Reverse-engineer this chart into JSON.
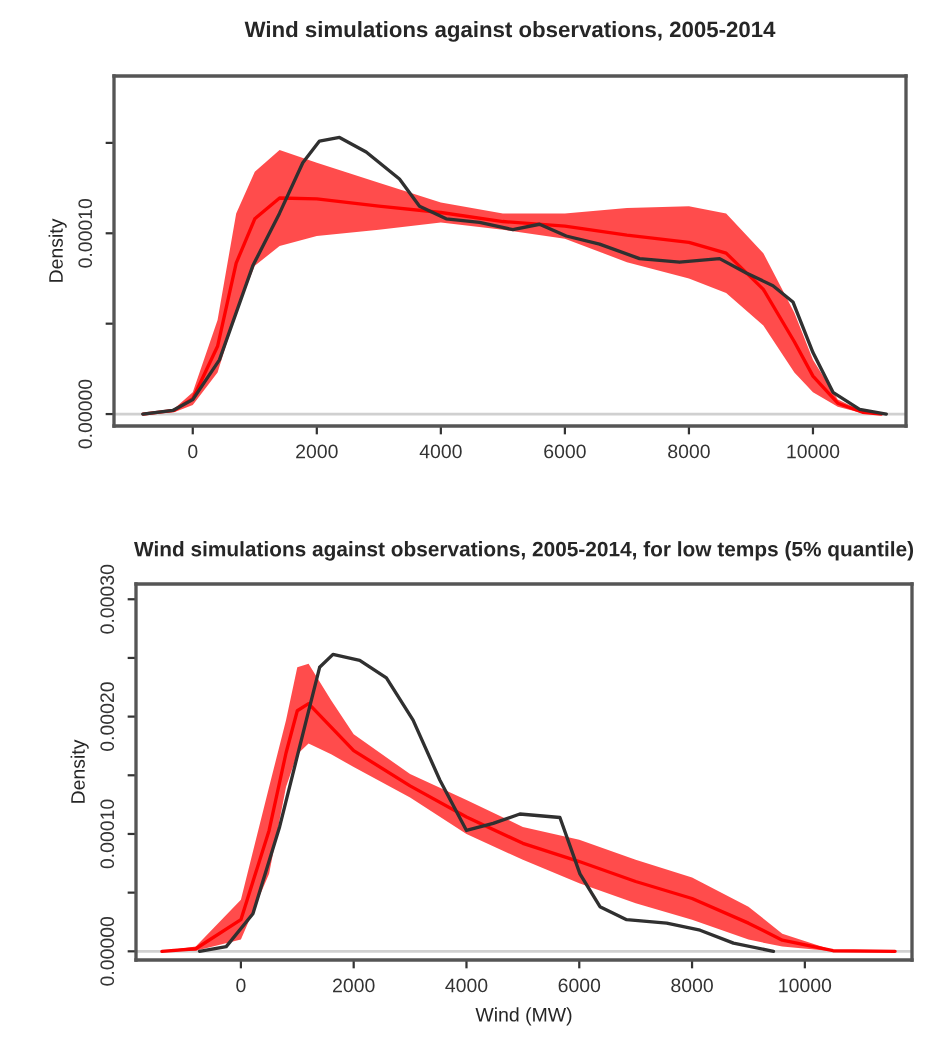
{
  "chart_data": [
    {
      "type": "line",
      "title": "Wind simulations against observations, 2005-2014",
      "ylabel": "Density",
      "xlim": [
        -1270,
        11500
      ],
      "ylim": [
        -6.6e-06,
        0.000187
      ],
      "xticks": [
        0,
        2000,
        4000,
        6000,
        8000,
        10000
      ],
      "yticks": [
        {
          "value": 0,
          "label": "0.00000"
        },
        {
          "value": 5e-05,
          "label": null
        },
        {
          "value": 0.0001,
          "label": "0.00010"
        },
        {
          "value": 0.00015,
          "label": null
        }
      ],
      "grid": false,
      "ref_lines": [
        {
          "axis": "y",
          "value": 0,
          "color": "#d0d0d0"
        }
      ],
      "series": [
        {
          "color": "#ff0000",
          "x": [
            -800,
            -300,
            0,
            400,
            700,
            1000,
            1400,
            2000,
            3000,
            4000,
            5000,
            6000,
            7000,
            8000,
            8600,
            9200,
            9700,
            10000,
            10400,
            10800,
            11100
          ],
          "values": [
            0,
            2e-06,
            8.5e-06,
            3.75e-05,
            8.35e-05,
            0.000108,
            0.0001195,
            0.000119,
            0.000115,
            0.0001115,
            0.0001065,
            0.000104,
            9.9e-05,
            9.5e-05,
            8.9e-05,
            6.9e-05,
            4e-05,
            2.1e-05,
            6e-06,
            1e-06,
            0
          ],
          "lower": [
            0,
            1e-06,
            5e-06,
            2.3e-05,
            5.6e-05,
            8.2e-05,
            9.3e-05,
            9.85e-05,
            0.000102,
            0.000106,
            0.000102,
            9.7e-05,
            8.4e-05,
            7.5e-05,
            6.7e-05,
            4.9e-05,
            2.3e-05,
            1.2e-05,
            4e-06,
            5e-07,
            0
          ],
          "upper": [
            0,
            3e-06,
            1.2e-05,
            5.2e-05,
            0.000111,
            0.000134,
            0.000146,
            0.000139,
            0.000128,
            0.000117,
            0.000111,
            0.000111,
            0.000114,
            0.000115,
            0.000111,
            8.9e-05,
            5.6e-05,
            3e-05,
            8e-06,
            1.5e-06,
            0
          ]
        },
        {
          "color": "#303030",
          "x": [
            -806,
            -323,
            0,
            430,
            968,
            1398,
            1774,
            2043,
            2366,
            2796,
            3333,
            3656,
            4086,
            4624,
            5161,
            5591,
            6022,
            6559,
            7204,
            7849,
            8495,
            8925,
            9355,
            9677,
            10000,
            10323,
            10753,
            11183
          ],
          "values": [
            0,
            2e-06,
            8e-06,
            3e-05,
            8.2e-05,
            0.000111,
            0.000139,
            0.000151,
            0.000153,
            0.000145,
            0.00013,
            0.000115,
            0.000108,
            0.000106,
            0.000102,
            0.000105,
            9.85e-05,
            9.4e-05,
            8.6e-05,
            8.4e-05,
            8.6e-05,
            7.8e-05,
            7.1e-05,
            6.2e-05,
            3.4e-05,
            1.2e-05,
            2.6e-06,
            0
          ]
        }
      ]
    },
    {
      "type": "line",
      "title": "Wind simulations against observations, 2005-2014, for low temps (5% quantile)",
      "ylabel": "Density",
      "xlabel": "Wind (MW)",
      "xlim": [
        -1860,
        11900
      ],
      "ylim": [
        -7.4e-06,
        0.000313
      ],
      "xticks": [
        0,
        2000,
        4000,
        6000,
        8000,
        10000
      ],
      "yticks": [
        {
          "value": 0,
          "label": "0.00000"
        },
        {
          "value": 5e-05,
          "label": null
        },
        {
          "value": 0.0001,
          "label": "0.00010"
        },
        {
          "value": 0.00015,
          "label": null
        },
        {
          "value": 0.0002,
          "label": "0.00020"
        },
        {
          "value": 0.00025,
          "label": null
        },
        {
          "value": 0.0003,
          "label": "0.00030"
        }
      ],
      "grid": false,
      "ref_lines": [
        {
          "axis": "y",
          "value": 0,
          "color": "#d0d0d0"
        }
      ],
      "series": [
        {
          "color": "#ff0000",
          "x": [
            -1400,
            -800,
            0,
            500,
            800,
            1000,
            1200,
            1600,
            2000,
            3000,
            4000,
            5000,
            6000,
            7000,
            8000,
            9000,
            9600,
            10500,
            11600
          ],
          "values": [
            0,
            2.2e-06,
            2.7e-05,
            0.000103,
            0.000169,
            0.000205,
            0.000211,
            0.000191,
            0.000171,
            0.000141,
            0.0001145,
            9.2e-05,
            7.65e-05,
            5.95e-05,
            4.5e-05,
            2.4e-05,
            9.5e-06,
            5e-07,
            0
          ],
          "lower": [
            0,
            5e-07,
            1e-05,
            6.6e-05,
            0.00014,
            0.000168,
            0.000177,
            0.000168,
            0.000157,
            0.000131,
            0.0001,
            7.8e-05,
            5.8e-05,
            4.1e-05,
            2.7e-05,
            1e-05,
            4e-06,
            0,
            0
          ],
          "upper": [
            0,
            4e-06,
            4.4e-05,
            0.00014,
            0.000197,
            0.000242,
            0.000245,
            0.000214,
            0.000185,
            0.000151,
            0.000129,
            0.000106,
            9.5e-05,
            7.8e-05,
            6.3e-05,
            3.8e-05,
            1.5e-05,
            1e-06,
            0
          ]
        },
        {
          "color": "#303030",
          "x": [
            -734,
            -260,
            213,
            686,
            1160,
            1396,
            1633,
            2107,
            2580,
            3053,
            3527,
            4000,
            4473,
            4947,
            5657,
            6012,
            6367,
            6840,
            7550,
            8142,
            8734,
            9444
          ],
          "values": [
            0,
            4e-06,
            3.2e-05,
            0.000106,
            0.000197,
            0.000242,
            0.000253,
            0.000248,
            0.000233,
            0.000197,
            0.000146,
            0.000103,
            0.000109,
            0.000117,
            0.000114,
            6.6e-05,
            3.8e-05,
            2.7e-05,
            2.4e-05,
            1.8e-05,
            7e-06,
            0
          ]
        }
      ]
    }
  ]
}
